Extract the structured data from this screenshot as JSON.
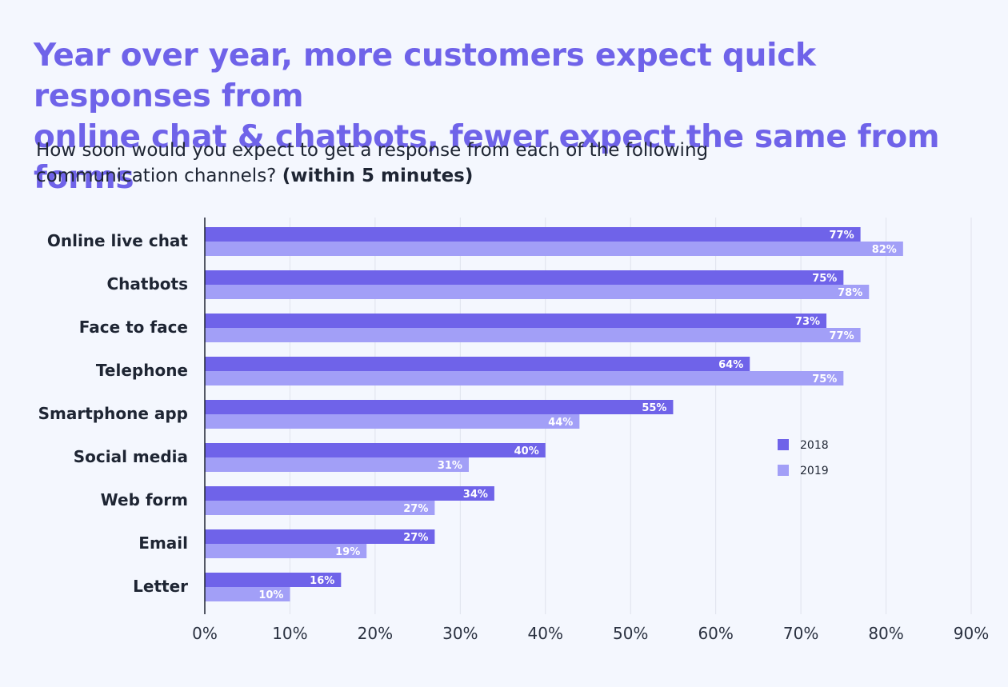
{
  "header": {
    "title_line1": "Year over year, more customers expect quick responses from",
    "title_line2": "online chat & chatbots, fewer expect the same from forms",
    "subtitle_line1": "How soon would you expect to get a response from each of the following",
    "subtitle_line2": "communication channels?",
    "subtitle_bold": "(within 5 minutes)"
  },
  "chart_data": {
    "type": "bar",
    "orientation": "horizontal",
    "categories": [
      "Online live chat",
      "Chatbots",
      "Face to face",
      "Telephone",
      "Smartphone app",
      "Social media",
      "Web form",
      "Email",
      "Letter"
    ],
    "series": [
      {
        "name": "2018",
        "color": "#6f63e9",
        "values": [
          77,
          75,
          73,
          64,
          55,
          40,
          34,
          27,
          16
        ],
        "labels": [
          "77%",
          "75%",
          "73%",
          "64%",
          "55%",
          "40%",
          "34%",
          "27%",
          "16%"
        ]
      },
      {
        "name": "2019",
        "color": "#a29ff7",
        "values": [
          82,
          78,
          77,
          75,
          44,
          31,
          27,
          19,
          10
        ],
        "labels": [
          "82%",
          "78%",
          "77%",
          "75%",
          "44%",
          "31%",
          "27%",
          "19%",
          "10%"
        ]
      }
    ],
    "xlim": [
      0,
      90
    ],
    "xticks": [
      0,
      10,
      20,
      30,
      40,
      50,
      60,
      70,
      80,
      90
    ],
    "xtick_labels": [
      "0%",
      "10%",
      "20%",
      "30%",
      "40%",
      "50%",
      "60%",
      "70%",
      "80%",
      "90%"
    ],
    "grid": true,
    "legend_position": "right"
  }
}
